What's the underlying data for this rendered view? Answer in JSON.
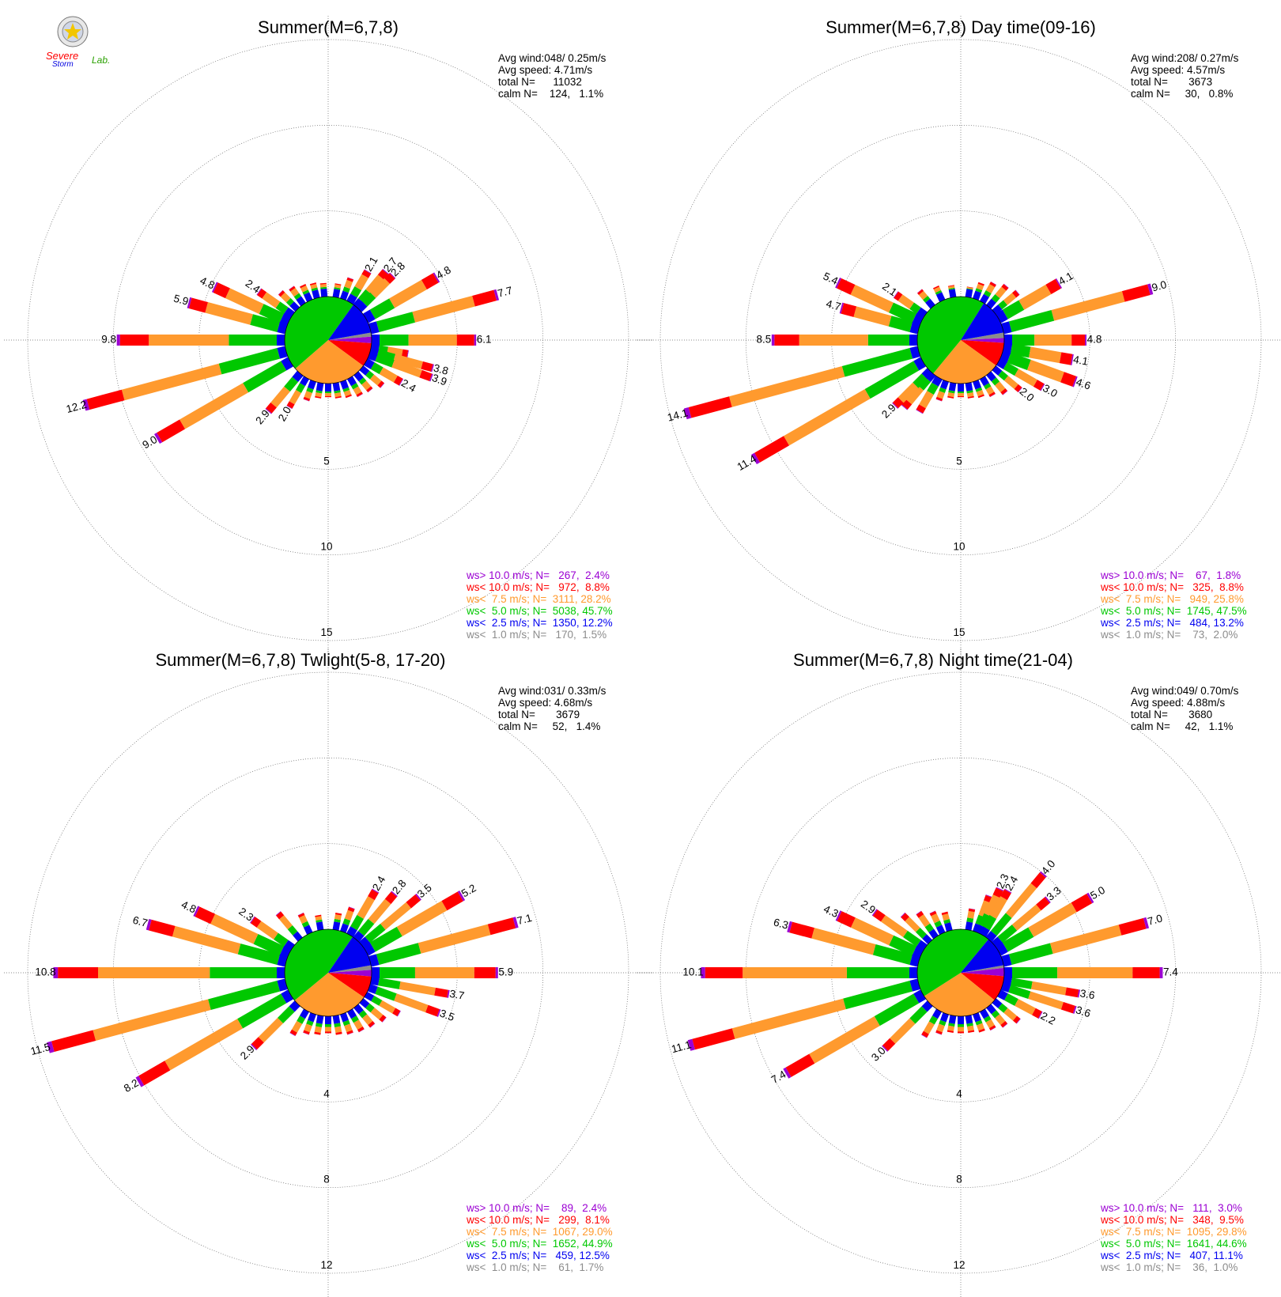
{
  "logo": {
    "text_top": "Severe",
    "text_bottom": "Storm",
    "text_lab": "Lab."
  },
  "colors": {
    "gt10": "#9b00d3",
    "lt10": "#ff0000",
    "lt75": "#ff9a2e",
    "lt5": "#00c800",
    "lt25": "#0000f0",
    "lt1": "#8c8c8c",
    "grid": "#666666"
  },
  "chart_data": [
    {
      "type": "wind-rose",
      "title": "Summer(M=6,7,8)",
      "stats": [
        "Avg wind:048/ 0.25m/s",
        "Avg speed: 4.71m/s",
        "total N=      11032",
        "calm N=    124,   1.1%"
      ],
      "ring_labels": [
        "5",
        "10",
        "15"
      ],
      "rmax": 15,
      "pie": [
        2.4,
        8.8,
        28.2,
        45.7,
        12.2,
        1.5
      ],
      "legend": [
        "ws> 10.0 m/s; N=   267,  2.4%",
        "ws< 10.0 m/s; N=   972,  8.8%",
        "ws<  7.5 m/s; N=  3111, 28.2%",
        "ws<  5.0 m/s; N=  5038, 45.7%",
        "ws<  2.5 m/s; N=  1350, 12.2%",
        "ws<  1.0 m/s; N=   170,  1.5%"
      ],
      "bars": [
        {
          "dir": 10,
          "total": 0.8
        },
        {
          "dir": 20,
          "total": 1.3
        },
        {
          "dir": 30,
          "total": 2.1,
          "label": "2.1"
        },
        {
          "dir": 40,
          "total": 2.7,
          "label": "2.7"
        },
        {
          "dir": 45,
          "total": 2.8,
          "label": "2.8"
        },
        {
          "dir": 60,
          "total": 4.8,
          "label": "4.8"
        },
        {
          "dir": 75,
          "total": 7.7,
          "label": "7.7"
        },
        {
          "dir": 90,
          "total": 6.1,
          "label": "6.1"
        },
        {
          "dir": 100,
          "total": 2.2
        },
        {
          "dir": 105,
          "total": 3.8,
          "label": "3.8"
        },
        {
          "dir": 110,
          "total": 3.9,
          "label": "3.9"
        },
        {
          "dir": 120,
          "total": 2.4,
          "label": "2.4"
        },
        {
          "dir": 130,
          "total": 1.6
        },
        {
          "dir": 140,
          "total": 1.3
        },
        {
          "dir": 150,
          "total": 1.2
        },
        {
          "dir": 160,
          "total": 1.0
        },
        {
          "dir": 170,
          "total": 0.9
        },
        {
          "dir": 180,
          "total": 0.8
        },
        {
          "dir": 190,
          "total": 0.9
        },
        {
          "dir": 200,
          "total": 1.2
        },
        {
          "dir": 210,
          "total": 2.0,
          "label": "2.0"
        },
        {
          "dir": 220,
          "total": 2.9,
          "label": "2.9"
        },
        {
          "dir": 240,
          "total": 9.0,
          "label": "9.0"
        },
        {
          "dir": 255,
          "total": 12.2,
          "label": "12.2"
        },
        {
          "dir": 270,
          "total": 9.8,
          "label": "9.8"
        },
        {
          "dir": 285,
          "total": 5.9,
          "label": "5.9"
        },
        {
          "dir": 295,
          "total": 4.8,
          "label": "4.8"
        },
        {
          "dir": 305,
          "total": 2.4,
          "label": "2.4"
        },
        {
          "dir": 315,
          "total": 1.4
        },
        {
          "dir": 325,
          "total": 1.2
        },
        {
          "dir": 335,
          "total": 1.0
        },
        {
          "dir": 345,
          "total": 0.9
        },
        {
          "dir": 355,
          "total": 0.8
        }
      ]
    },
    {
      "type": "wind-rose",
      "title": "Summer(M=6,7,8) Day time(09-16)",
      "stats": [
        "Avg wind:208/ 0.27m/s",
        "Avg speed: 4.57m/s",
        "total N=       3673",
        "calm N=     30,   0.8%"
      ],
      "ring_labels": [
        "5",
        "10",
        "15"
      ],
      "rmax": 15,
      "pie": [
        1.8,
        8.8,
        25.8,
        47.5,
        13.2,
        2.0
      ],
      "legend": [
        "ws> 10.0 m/s; N=    67,  1.8%",
        "ws< 10.0 m/s; N=   325,  8.8%",
        "ws<  7.5 m/s; N=   949, 25.8%",
        "ws<  5.0 m/s; N=  1745, 47.5%",
        "ws<  2.5 m/s; N=   484, 13.2%",
        "ws<  1.0 m/s; N=    73,  2.0%"
      ],
      "bars": [
        {
          "dir": 10,
          "total": 0.6
        },
        {
          "dir": 20,
          "total": 1.0
        },
        {
          "dir": 30,
          "total": 1.3
        },
        {
          "dir": 40,
          "total": 1.6
        },
        {
          "dir": 50,
          "total": 1.8
        },
        {
          "dir": 60,
          "total": 4.1,
          "label": "4.1"
        },
        {
          "dir": 75,
          "total": 9.0,
          "label": "9.0"
        },
        {
          "dir": 90,
          "total": 4.8,
          "label": "4.8"
        },
        {
          "dir": 100,
          "total": 4.1,
          "label": "4.1"
        },
        {
          "dir": 110,
          "total": 4.6,
          "label": "4.6"
        },
        {
          "dir": 120,
          "total": 3.0,
          "label": "3.0"
        },
        {
          "dir": 130,
          "total": 2.0,
          "label": "2.0"
        },
        {
          "dir": 140,
          "total": 1.5
        },
        {
          "dir": 150,
          "total": 1.2
        },
        {
          "dir": 160,
          "total": 1.0
        },
        {
          "dir": 170,
          "total": 0.9
        },
        {
          "dir": 180,
          "total": 0.8
        },
        {
          "dir": 190,
          "total": 0.9
        },
        {
          "dir": 200,
          "total": 1.2
        },
        {
          "dir": 210,
          "total": 2.3
        },
        {
          "dir": 220,
          "total": 2.6
        },
        {
          "dir": 225,
          "total": 2.9,
          "label": "2.9"
        },
        {
          "dir": 240,
          "total": 11.4,
          "label": "11.4"
        },
        {
          "dir": 255,
          "total": 14.1,
          "label": "14.1"
        },
        {
          "dir": 270,
          "total": 8.5,
          "label": "8.5"
        },
        {
          "dir": 285,
          "total": 4.7,
          "label": "4.7"
        },
        {
          "dir": 295,
          "total": 5.4,
          "label": "5.4"
        },
        {
          "dir": 305,
          "total": 2.1,
          "label": "2.1"
        },
        {
          "dir": 320,
          "total": 1.2
        },
        {
          "dir": 335,
          "total": 0.9
        },
        {
          "dir": 350,
          "total": 0.7
        }
      ]
    },
    {
      "type": "wind-rose",
      "title": "Summer(M=6,7,8) Twlight(5-8, 17-20)",
      "stats": [
        "Avg wind:031/ 0.33m/s",
        "Avg speed: 4.68m/s",
        "total N=       3679",
        "calm N=     52,   1.4%"
      ],
      "ring_labels": [
        "4",
        "8",
        "12"
      ],
      "rmax": 12,
      "pie": [
        2.4,
        8.1,
        29.0,
        44.9,
        12.5,
        1.7
      ],
      "legend": [
        "ws> 10.0 m/s; N=    89,  2.4%",
        "ws< 10.0 m/s; N=   299,  8.1%",
        "ws<  7.5 m/s; N=  1067, 29.0%",
        "ws<  5.0 m/s; N=  1652, 44.9%",
        "ws<  2.5 m/s; N=   459, 12.5%",
        "ws<  1.0 m/s; N=    61,  1.7%"
      ],
      "bars": [
        {
          "dir": 10,
          "total": 0.8
        },
        {
          "dir": 20,
          "total": 1.2
        },
        {
          "dir": 30,
          "total": 2.4,
          "label": "2.4"
        },
        {
          "dir": 40,
          "total": 2.8,
          "label": "2.8"
        },
        {
          "dir": 50,
          "total": 3.5,
          "label": "3.5"
        },
        {
          "dir": 60,
          "total": 5.2,
          "label": "5.2"
        },
        {
          "dir": 75,
          "total": 7.1,
          "label": "7.1"
        },
        {
          "dir": 90,
          "total": 5.9,
          "label": "5.9"
        },
        {
          "dir": 100,
          "total": 3.7,
          "label": "3.7"
        },
        {
          "dir": 110,
          "total": 3.5,
          "label": "3.5"
        },
        {
          "dir": 120,
          "total": 1.8
        },
        {
          "dir": 130,
          "total": 1.4
        },
        {
          "dir": 140,
          "total": 1.2
        },
        {
          "dir": 150,
          "total": 1.1
        },
        {
          "dir": 160,
          "total": 1.0
        },
        {
          "dir": 170,
          "total": 0.9
        },
        {
          "dir": 180,
          "total": 0.8
        },
        {
          "dir": 190,
          "total": 0.9
        },
        {
          "dir": 200,
          "total": 1.0
        },
        {
          "dir": 210,
          "total": 1.3
        },
        {
          "dir": 225,
          "total": 2.9,
          "label": "2.9"
        },
        {
          "dir": 240,
          "total": 8.2,
          "label": "8.2"
        },
        {
          "dir": 255,
          "total": 11.5,
          "label": "11.5"
        },
        {
          "dir": 270,
          "total": 10.8,
          "label": "10.8"
        },
        {
          "dir": 285,
          "total": 6.7,
          "label": "6.7"
        },
        {
          "dir": 295,
          "total": 4.8,
          "label": "4.8"
        },
        {
          "dir": 305,
          "total": 2.3,
          "label": "2.3"
        },
        {
          "dir": 320,
          "total": 1.6
        },
        {
          "dir": 335,
          "total": 1.0
        },
        {
          "dir": 350,
          "total": 0.7
        }
      ]
    },
    {
      "type": "wind-rose",
      "title": "Summer(M=6,7,8) Night time(21-04)",
      "stats": [
        "Avg wind:049/ 0.70m/s",
        "Avg speed: 4.88m/s",
        "total N=       3680",
        "calm N=     42,   1.1%"
      ],
      "ring_labels": [
        "4",
        "8",
        "12"
      ],
      "rmax": 12,
      "pie": [
        3.0,
        9.5,
        29.8,
        44.6,
        11.1,
        1.0
      ],
      "legend": [
        "ws> 10.0 m/s; N=   111,  3.0%",
        "ws< 10.0 m/s; N=   348,  9.5%",
        "ws<  7.5 m/s; N=  1095, 29.8%",
        "ws<  5.0 m/s; N=  1641, 44.6%",
        "ws<  2.5 m/s; N=   407, 11.1%",
        "ws<  1.0 m/s; N=    36,  1.0%"
      ],
      "bars": [
        {
          "dir": 10,
          "total": 1.0
        },
        {
          "dir": 20,
          "total": 1.8
        },
        {
          "dir": 25,
          "total": 2.3,
          "label": "2.3"
        },
        {
          "dir": 30,
          "total": 2.4,
          "label": "2.4"
        },
        {
          "dir": 40,
          "total": 4.0,
          "label": "4.0"
        },
        {
          "dir": 50,
          "total": 3.3,
          "label": "3.3"
        },
        {
          "dir": 60,
          "total": 5.0,
          "label": "5.0"
        },
        {
          "dir": 75,
          "total": 7.0,
          "label": "7.0"
        },
        {
          "dir": 90,
          "total": 7.4,
          "label": "7.4"
        },
        {
          "dir": 100,
          "total": 3.6,
          "label": "3.6"
        },
        {
          "dir": 108,
          "total": 3.6,
          "label": "3.6"
        },
        {
          "dir": 118,
          "total": 2.2,
          "label": "2.2"
        },
        {
          "dir": 130,
          "total": 1.5
        },
        {
          "dir": 140,
          "total": 1.2
        },
        {
          "dir": 150,
          "total": 1.0
        },
        {
          "dir": 160,
          "total": 0.9
        },
        {
          "dir": 170,
          "total": 0.8
        },
        {
          "dir": 180,
          "total": 0.8
        },
        {
          "dir": 190,
          "total": 0.8
        },
        {
          "dir": 200,
          "total": 1.0
        },
        {
          "dir": 210,
          "total": 1.4
        },
        {
          "dir": 225,
          "total": 3.0,
          "label": "3.0"
        },
        {
          "dir": 240,
          "total": 7.4,
          "label": "7.4"
        },
        {
          "dir": 255,
          "total": 11.1,
          "label": "11.1"
        },
        {
          "dir": 270,
          "total": 10.1,
          "label": "10.1"
        },
        {
          "dir": 285,
          "total": 6.3,
          "label": "6.3"
        },
        {
          "dir": 295,
          "total": 4.3,
          "label": "4.3"
        },
        {
          "dir": 305,
          "total": 2.9,
          "label": "2.9"
        },
        {
          "dir": 315,
          "total": 1.8
        },
        {
          "dir": 325,
          "total": 1.4
        },
        {
          "dir": 335,
          "total": 1.1
        },
        {
          "dir": 345,
          "total": 0.9
        }
      ]
    }
  ]
}
